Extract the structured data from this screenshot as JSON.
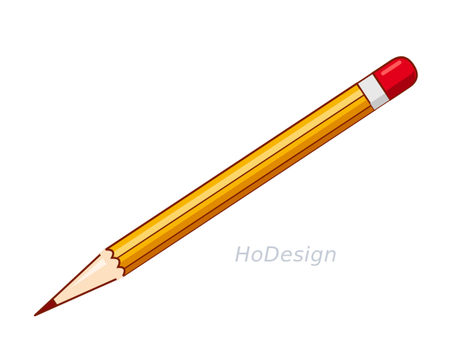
{
  "illustration": {
    "subject": "pencil-icon",
    "watermark": "HoDesign",
    "colors": {
      "background": "#ffffff",
      "outline": "#7a1a00",
      "body_main": "#f7b500",
      "body_light": "#fcd66a",
      "body_dark": "#e08a00",
      "body_shadow": "#c86a00",
      "ferrule": "#e8e8e8",
      "ferrule_shade": "#c8c8c8",
      "eraser": "#e3001b",
      "eraser_dark": "#a8000f",
      "eraser_highlight": "#ff5a5a",
      "wood": "#fde0c0",
      "wood_highlight": "#fff3e6",
      "graphite": "#8a0a0a",
      "watermark": "#c5ccd6"
    }
  }
}
